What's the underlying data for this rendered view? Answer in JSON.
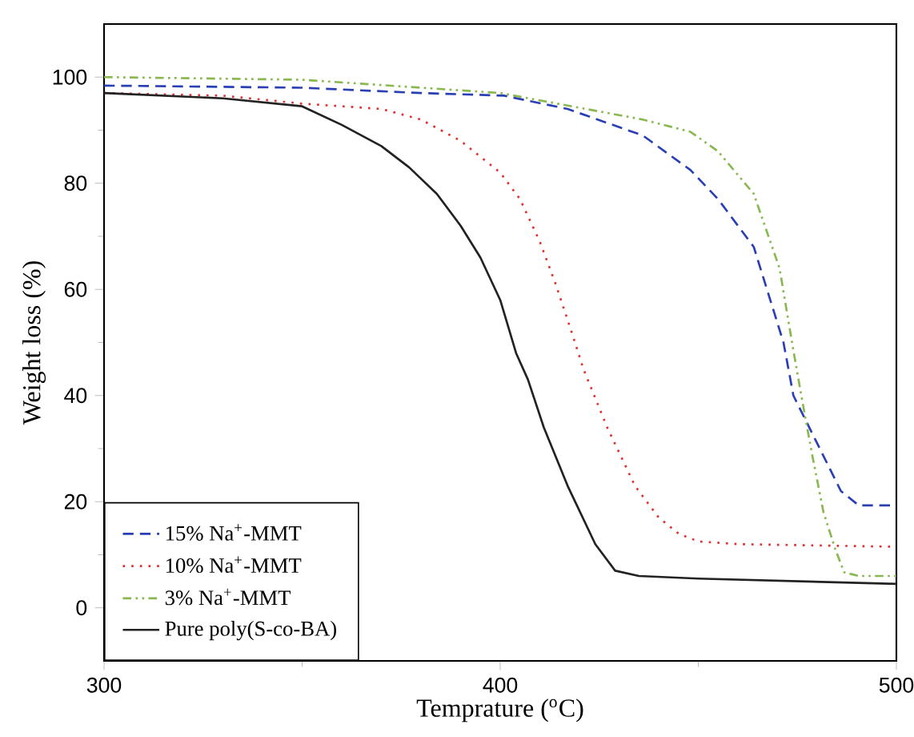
{
  "chart_data": {
    "type": "line",
    "xlabel": "Temprature ($^{o}$C)",
    "ylabel": "Weight loss (%)",
    "xlim": [
      300,
      500
    ],
    "ylim": [
      -10,
      110
    ],
    "xticks": [
      300,
      400,
      500
    ],
    "yticks": [
      0,
      20,
      40,
      60,
      80,
      100
    ],
    "legend": "bottom left",
    "marker": "none",
    "series": [
      {
        "name": "15% Na$^{+}$-MMT",
        "color": "#2b3fb5",
        "line_style": "dashed",
        "x": [
          300,
          350,
          380,
          401,
          417,
          436,
          448,
          455,
          464,
          471.5,
          474,
          480,
          486,
          490.5,
          500
        ],
        "values": [
          98.4,
          98,
          97,
          96.5,
          94,
          89,
          82.5,
          77,
          68,
          50,
          40,
          31,
          22,
          19.3,
          19.3
        ]
      },
      {
        "name": "10% Na$^{+}$-MMT",
        "color": "#e03030",
        "line_style": "dotted",
        "x": [
          300,
          330,
          350,
          370,
          380,
          390,
          400,
          405,
          410,
          414,
          418,
          421,
          427,
          434,
          440,
          445,
          450,
          460,
          500
        ],
        "values": [
          97,
          96.5,
          95,
          94,
          92,
          88,
          82,
          77,
          69,
          61,
          52,
          45,
          34,
          23,
          17,
          14,
          12.5,
          12,
          11.5
        ]
      },
      {
        "name": "3% Na$^{+}$-MMT",
        "color": "#8ab850",
        "line_style": "dashdot",
        "x": [
          300,
          350,
          400,
          436,
          448,
          455,
          464,
          470.5,
          474,
          476,
          478.7,
          481.6,
          484.6,
          486.8,
          490.5,
          500
        ],
        "values": [
          100,
          99.5,
          97,
          92,
          89.7,
          86,
          78,
          64,
          48.5,
          40,
          29,
          18,
          11,
          6.7,
          6,
          6
        ]
      },
      {
        "name": "Pure poly(S-co-BA)",
        "color": "#222222",
        "line_style": "solid",
        "x": [
          300,
          330,
          350,
          360,
          370,
          377,
          384,
          390,
          395,
          400,
          404,
          407,
          411,
          417,
          424,
          429,
          435,
          450,
          500
        ],
        "values": [
          97,
          96,
          94.5,
          91,
          87,
          83,
          78,
          72,
          66,
          58,
          48,
          43,
          34,
          23,
          12,
          7,
          6,
          5.5,
          4.5
        ]
      }
    ]
  }
}
